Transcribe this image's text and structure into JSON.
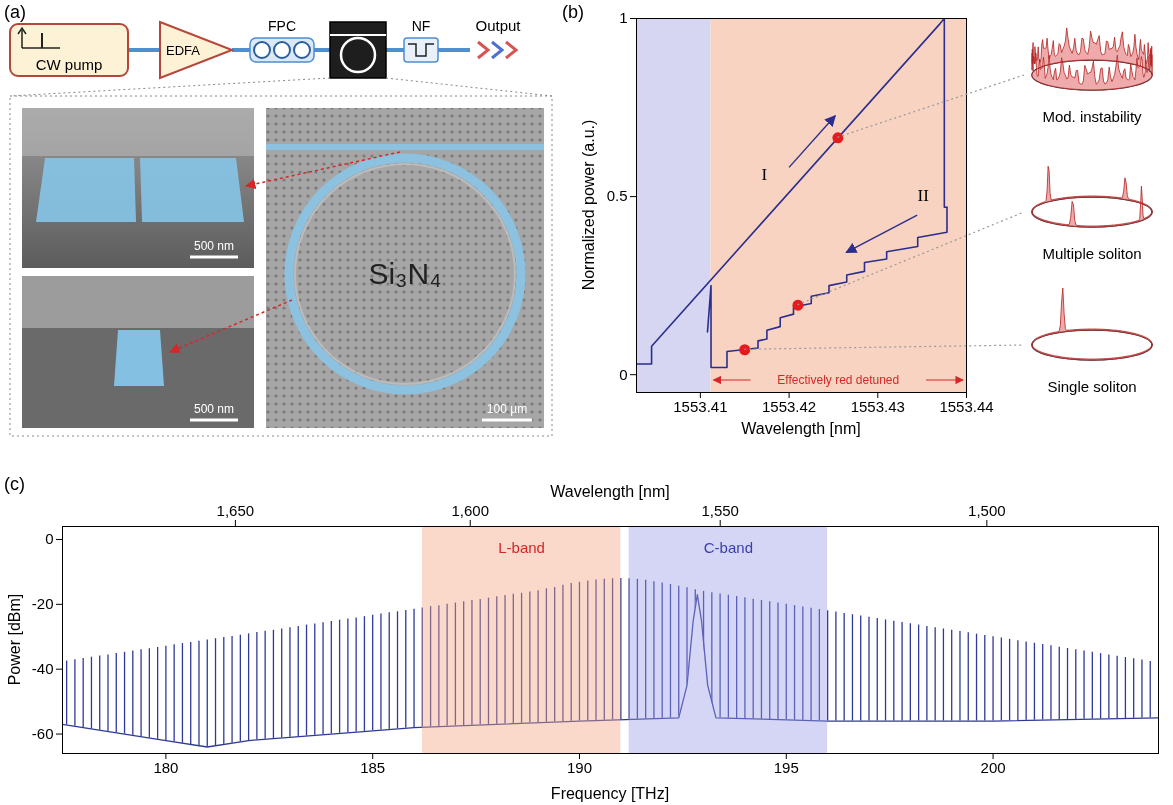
{
  "diagram": {
    "panel_label": "(a)",
    "setup": [
      "CW pump",
      "EDFA",
      "FPC",
      "NF",
      "Output"
    ],
    "material": "Si₃N₄",
    "scale_bars": [
      "500 nm",
      "500 nm",
      "100 µm"
    ]
  },
  "chart_data": [
    {
      "panel_label": "(b)",
      "type": "line",
      "x_label": "Wavelength [nm]",
      "y_label": "Normalized power (a.u.)",
      "xlim": [
        1553.4028,
        1553.44
      ],
      "xticks": [
        1553.41,
        1553.42,
        1553.43,
        1553.44
      ],
      "ylim": [
        -0.05,
        1
      ],
      "yticks": [
        0,
        0.5,
        1
      ],
      "regions": [
        {
          "x": [
            1553.4028,
            1553.4112
          ],
          "color": "#d6d6f3"
        },
        {
          "x": [
            1553.4112,
            1553.44
          ],
          "color": "#f9d3c2",
          "label": "Effectively red detuned",
          "label_color": "#d62728"
        }
      ],
      "series": [
        {
          "name": "I",
          "color": "#2b2e8c",
          "x": [
            1553.4028,
            1553.4045,
            1553.4045,
            1553.437,
            1553.4375,
            1553.4375,
            1553.4378
          ],
          "values": [
            0.03,
            0.03,
            0.08,
            0.985,
            1,
            0.47,
            0.47
          ]
        },
        {
          "name": "II",
          "color": "#2b2e8c",
          "x": [
            1553.4378,
            1553.4378,
            1553.4345,
            1553.4345,
            1553.431,
            1553.431,
            1553.4285,
            1553.4285,
            1553.4265,
            1553.4265,
            1553.4245,
            1553.4245,
            1553.4225,
            1553.4225,
            1553.4205,
            1553.4205,
            1553.419,
            1553.419,
            1553.4175,
            1553.4175,
            1553.4165,
            1553.4165,
            1553.413,
            1553.413,
            1553.4112,
            1553.4112,
            1553.4108
          ],
          "values": [
            0.47,
            0.4,
            0.385,
            0.36,
            0.345,
            0.325,
            0.315,
            0.29,
            0.28,
            0.26,
            0.25,
            0.23,
            0.22,
            0.2,
            0.19,
            0.17,
            0.16,
            0.135,
            0.125,
            0.1,
            0.095,
            0.075,
            0.065,
            0.02,
            0.02,
            0.25,
            0.12
          ]
        },
        {
          "type": "scatter",
          "marker": "circle",
          "color": "#e41a1c",
          "x": [
            1553.4255,
            1553.421,
            1553.415
          ],
          "values": [
            0.665,
            0.195,
            0.07
          ],
          "labels": [
            "Mod. instability",
            "Multiple soliton",
            "Single soliton"
          ]
        }
      ]
    },
    {
      "panel_label": "(c)",
      "type": "spectrum",
      "x_label": "Frequency [THz]",
      "x2_label": "Wavelength [nm]",
      "y_label": "Power [dBm]",
      "xlim": [
        177.5,
        204
      ],
      "xticks": [
        180,
        185,
        190,
        195,
        200
      ],
      "x2ticks": [
        {
          "value": 1650,
          "label": "1,650"
        },
        {
          "value": 1600,
          "label": "1,600"
        },
        {
          "value": 1550,
          "label": "1,550"
        },
        {
          "value": 1500,
          "label": "1,500"
        }
      ],
      "ylim": [
        -66,
        4
      ],
      "yticks": [
        -60,
        -40,
        -20,
        0
      ],
      "bands": [
        {
          "label": "L-band",
          "x": [
            186.2,
            191
          ],
          "color": "#f4a582",
          "label_color": "#d62728"
        },
        {
          "label": "C-band",
          "x": [
            191.2,
            196
          ],
          "color": "#9c9ce6",
          "label_color": "#3b3fae"
        }
      ],
      "lines": {
        "color": "#2f3a96",
        "x": [
          177.6,
          177.8,
          178,
          178.2,
          178.4,
          178.6,
          178.8,
          179,
          179.2,
          179.4,
          179.6,
          179.8,
          180,
          180.2,
          180.4,
          180.6,
          180.8,
          181,
          181.2,
          181.4,
          181.6,
          181.8,
          182,
          182.2,
          182.4,
          182.6,
          182.8,
          183,
          183.2,
          183.4,
          183.6,
          183.8,
          184,
          184.2,
          184.4,
          184.6,
          184.8,
          185,
          185.2,
          185.4,
          185.6,
          185.8,
          186,
          186.2,
          186.4,
          186.6,
          186.8,
          187,
          187.2,
          187.4,
          187.6,
          187.8,
          188,
          188.2,
          188.4,
          188.6,
          188.8,
          189,
          189.2,
          189.4,
          189.6,
          189.8,
          190,
          190.2,
          190.4,
          190.6,
          190.8,
          191,
          191.2,
          191.4,
          191.6,
          191.8,
          192,
          192.2,
          192.4,
          192.6,
          192.8,
          193,
          193.2,
          193.4,
          193.6,
          193.8,
          194,
          194.2,
          194.4,
          194.6,
          194.8,
          195,
          195.2,
          195.4,
          195.6,
          195.8,
          196,
          196.2,
          196.4,
          196.6,
          196.8,
          197,
          197.2,
          197.4,
          197.6,
          197.8,
          198,
          198.2,
          198.4,
          198.6,
          198.8,
          199,
          199.2,
          199.4,
          199.6,
          199.8,
          200,
          200.2,
          200.4,
          200.6,
          200.8,
          201,
          201.2,
          201.4,
          201.6,
          201.8,
          202,
          202.2,
          202.4,
          202.6,
          202.8,
          203,
          203.2,
          203.4,
          203.6,
          203.8
        ],
        "values": [
          -37.5,
          -37.1,
          -36.7,
          -36.3,
          -35.9,
          -35.6,
          -35.2,
          -34.8,
          -34.4,
          -34,
          -33.7,
          -33.3,
          -32.9,
          -32.5,
          -32.1,
          -31.8,
          -31.4,
          -31,
          -30.6,
          -30.2,
          -29.9,
          -29.5,
          -29.1,
          -28.7,
          -28.3,
          -28,
          -27.6,
          -27.2,
          -26.8,
          -26.4,
          -26.1,
          -25.7,
          -25.3,
          -24.9,
          -24.5,
          -24.2,
          -23.8,
          -23.4,
          -23,
          -22.6,
          -22.3,
          -21.9,
          -21.5,
          -21.1,
          -20.7,
          -20.4,
          -20,
          -19.6,
          -19.2,
          -18.8,
          -18.5,
          -18.1,
          -17.7,
          -17.3,
          -16.9,
          -16.6,
          -16.2,
          -15.8,
          -15.2,
          -14.8,
          -14.1,
          -13.6,
          -13.2,
          -12.8,
          -12.5,
          -12.3,
          -12.1,
          -12,
          -12.1,
          -12.3,
          -12.6,
          -13,
          -13.4,
          -13.9,
          -14.4,
          -14.9,
          -15.5,
          -16,
          -16.4,
          -16.8,
          -17.2,
          -17.6,
          -18,
          -18.4,
          -18.8,
          -19.2,
          -19.6,
          -20,
          -20.4,
          -20.8,
          -21.2,
          -21.6,
          -22,
          -22.4,
          -22.8,
          -23.2,
          -23.6,
          -24,
          -24.4,
          -24.8,
          -25.2,
          -25.6,
          -26,
          -26.4,
          -26.8,
          -27.2,
          -27.6,
          -28,
          -28.4,
          -28.8,
          -29.2,
          -29.6,
          -30,
          -30.4,
          -30.8,
          -31.2,
          -31.6,
          -32,
          -32.4,
          -32.8,
          -33.2,
          -33.6,
          -34,
          -34.4,
          -34.8,
          -35.2,
          -35.6,
          -36,
          -36.4,
          -36.8,
          -37.2,
          -37.6
        ]
      },
      "noise_floor": {
        "color": "#2f3a96",
        "x": [
          177.5,
          179,
          180,
          181,
          182,
          184,
          186,
          188,
          190,
          192.4,
          192.6,
          192.75,
          192.85,
          192.95,
          193.1,
          193.3,
          196,
          200,
          204
        ],
        "values": [
          -57,
          -60,
          -62,
          -64,
          -62,
          -60,
          -58,
          -57,
          -56,
          -55,
          -45,
          -25,
          -17,
          -25,
          -45,
          -55,
          -56,
          -56,
          -55
        ]
      }
    }
  ]
}
